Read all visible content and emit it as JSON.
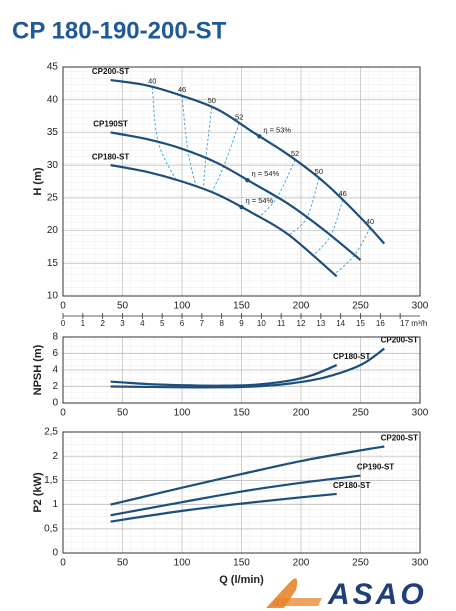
{
  "title": "CP 180-190-200-ST",
  "watermark": "ASAO",
  "chart_data": [
    {
      "type": "line",
      "ylabel": "H (m)",
      "xlim": [
        0,
        300
      ],
      "xticks": [
        0,
        50,
        100,
        150,
        200,
        250,
        300
      ],
      "ylim": [
        10,
        45
      ],
      "yticks": [
        10,
        15,
        20,
        25,
        30,
        35,
        40,
        45
      ],
      "x2lim": [
        0,
        18
      ],
      "x2ticks": [
        0,
        1,
        2,
        3,
        4,
        5,
        6,
        7,
        8,
        9,
        10,
        11,
        12,
        13,
        14,
        15,
        16,
        {
          "value": 17,
          "label": "17 m³/h"
        }
      ],
      "grid": true,
      "legend": "line-start",
      "series": [
        {
          "name": "CP200-ST",
          "color": "#1d4f7c",
          "x": [
            40,
            70,
            100,
            130,
            160,
            190,
            220,
            250,
            270
          ],
          "values": [
            43,
            42.2,
            40.6,
            38.5,
            35,
            31.5,
            27.3,
            22,
            18
          ]
        },
        {
          "name": "CP190ST",
          "color": "#1d4f7c",
          "x": [
            40,
            70,
            100,
            130,
            160,
            190,
            220,
            250
          ],
          "values": [
            35,
            34,
            32.5,
            30.3,
            27.2,
            24,
            20,
            15.5
          ]
        },
        {
          "name": "CP180-ST",
          "color": "#1d4f7c",
          "x": [
            40,
            70,
            100,
            130,
            160,
            190,
            230
          ],
          "values": [
            30,
            29,
            27.5,
            25.5,
            22.6,
            19.3,
            13
          ]
        }
      ],
      "efficiency_color": "#3a9fd6",
      "efficiency_lines": [
        {
          "label": "40",
          "x": [
            75,
            80,
            95
          ],
          "y": [
            41.9,
            33.5,
            27.75
          ]
        },
        {
          "label": "46",
          "x": [
            100,
            105,
            112
          ],
          "y": [
            40.6,
            32.1,
            26.7
          ]
        },
        {
          "label": "50",
          "x": [
            125,
            120,
            118
          ],
          "y": [
            38.85,
            31.0,
            26.3
          ]
        },
        {
          "label": "52",
          "x": [
            148,
            135,
            125
          ],
          "y": [
            36.4,
            29.8,
            25.8
          ]
        },
        {
          "label": "52",
          "x": [
            195,
            180,
            165
          ],
          "y": [
            30.8,
            25.1,
            22.05
          ]
        },
        {
          "label": "50",
          "x": [
            215,
            205,
            190
          ],
          "y": [
            28.0,
            22.0,
            19.3
          ]
        },
        {
          "label": "46",
          "x": [
            235,
            225,
            210
          ],
          "y": [
            24.65,
            19.25,
            16.15
          ]
        },
        {
          "label": "40",
          "x": [
            258,
            245,
            228
          ],
          "y": [
            20.4,
            16.25,
            13.3
          ]
        }
      ],
      "efficiency_points": [
        {
          "label": "η = 53%",
          "x": 165,
          "y": 34.4
        },
        {
          "label": "η = 54%",
          "x": 155,
          "y": 27.7
        },
        {
          "label": "η = 54%",
          "x": 150,
          "y": 23.6
        }
      ]
    },
    {
      "type": "line",
      "ylabel": "NPSH (m)",
      "xlim": [
        0,
        300
      ],
      "xticks": [
        0,
        50,
        100,
        150,
        200,
        250,
        300
      ],
      "ylim": [
        0,
        8
      ],
      "yticks": [
        0,
        2,
        4,
        6,
        8
      ],
      "grid": true,
      "legend": "line-end",
      "series": [
        {
          "name": "CP180-ST",
          "color": "#1d4f7c",
          "x": [
            40,
            70,
            100,
            130,
            160,
            190,
            210,
            230
          ],
          "values": [
            2.6,
            2.3,
            2.15,
            2.1,
            2.2,
            2.7,
            3.4,
            4.6
          ]
        },
        {
          "name": "CP200-ST",
          "color": "#1d4f7c",
          "x": [
            40,
            70,
            100,
            130,
            160,
            190,
            220,
            250,
            270
          ],
          "values": [
            2.0,
            1.95,
            1.9,
            1.9,
            2.0,
            2.35,
            3.1,
            4.6,
            6.6
          ]
        }
      ]
    },
    {
      "type": "line",
      "ylabel": "P2 (kW)",
      "xlabel": "Q (l/min)",
      "xlim": [
        0,
        300
      ],
      "xticks": [
        0,
        50,
        100,
        150,
        200,
        250,
        300
      ],
      "ylim": [
        0,
        2.5
      ],
      "yticks": [
        0,
        {
          "value": 0.5,
          "label": "0,5"
        },
        1,
        {
          "value": 1.5,
          "label": "1,5"
        },
        2,
        {
          "value": 2.5,
          "label": "2,5"
        }
      ],
      "grid": true,
      "legend": "line-end",
      "series": [
        {
          "name": "CP200-ST",
          "color": "#1d4f7c",
          "x": [
            40,
            100,
            150,
            200,
            250,
            270
          ],
          "values": [
            1.0,
            1.35,
            1.63,
            1.9,
            2.12,
            2.2
          ]
        },
        {
          "name": "CP190-ST",
          "color": "#1d4f7c",
          "x": [
            40,
            100,
            150,
            200,
            250
          ],
          "values": [
            0.78,
            1.05,
            1.27,
            1.45,
            1.6
          ]
        },
        {
          "name": "CP180-ST",
          "color": "#1d4f7c",
          "x": [
            40,
            100,
            150,
            200,
            230
          ],
          "values": [
            0.65,
            0.87,
            1.02,
            1.15,
            1.22
          ]
        }
      ]
    }
  ]
}
